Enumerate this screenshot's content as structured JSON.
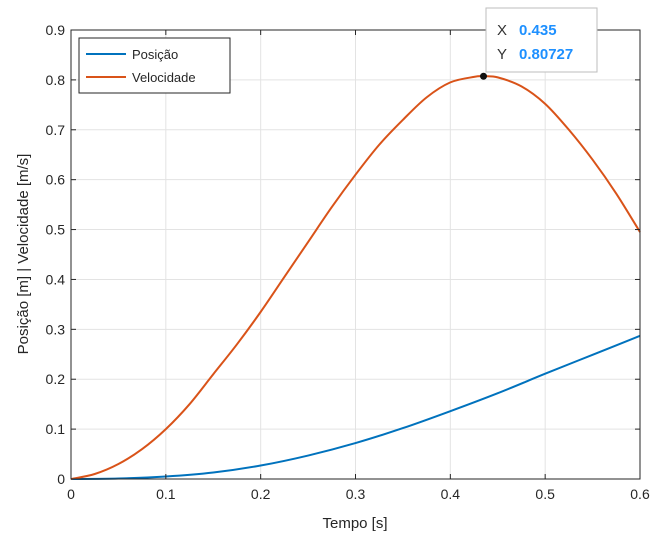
{
  "chart_data": {
    "type": "line",
    "xlabel": "Tempo [s]",
    "ylabel": "Posição [m] | Velocidade [m/s]",
    "xlim": [
      0,
      0.6
    ],
    "ylim": [
      0,
      0.9
    ],
    "xticks": [
      0,
      0.1,
      0.2,
      0.3,
      0.4,
      0.5,
      0.6
    ],
    "yticks": [
      0,
      0.1,
      0.2,
      0.3,
      0.4,
      0.5,
      0.6,
      0.7,
      0.8,
      0.9
    ],
    "xtick_labels": [
      "0",
      "0.1",
      "0.2",
      "0.3",
      "0.4",
      "0.5",
      "0.6"
    ],
    "ytick_labels": [
      "0",
      "0.1",
      "0.2",
      "0.3",
      "0.4",
      "0.5",
      "0.6",
      "0.7",
      "0.8",
      "0.9"
    ],
    "grid": true,
    "legend_position": "top-left",
    "series": [
      {
        "name": "Posição",
        "color": "#0072BD",
        "x": [
          0,
          0.05,
          0.1,
          0.15,
          0.2,
          0.25,
          0.3,
          0.35,
          0.4,
          0.45,
          0.5,
          0.55,
          0.6
        ],
        "y": [
          0,
          0.001,
          0.005,
          0.013,
          0.027,
          0.047,
          0.072,
          0.102,
          0.136,
          0.172,
          0.211,
          0.249,
          0.287
        ]
      },
      {
        "name": "Velocidade",
        "color": "#D95319",
        "x": [
          0,
          0.025,
          0.05,
          0.075,
          0.1,
          0.125,
          0.15,
          0.175,
          0.2,
          0.225,
          0.25,
          0.275,
          0.3,
          0.325,
          0.35,
          0.375,
          0.4,
          0.425,
          0.435,
          0.45,
          0.475,
          0.5,
          0.525,
          0.55,
          0.575,
          0.6
        ],
        "y": [
          0,
          0.01,
          0.03,
          0.06,
          0.1,
          0.15,
          0.21,
          0.27,
          0.335,
          0.405,
          0.475,
          0.545,
          0.61,
          0.67,
          0.72,
          0.765,
          0.795,
          0.806,
          0.80727,
          0.805,
          0.787,
          0.752,
          0.7,
          0.64,
          0.572,
          0.495
        ]
      }
    ],
    "datatip": {
      "series": "Velocidade",
      "x": 0.435,
      "y": 0.80727,
      "x_label": "X",
      "y_label": "Y",
      "x_text": "0.435",
      "y_text": "0.80727"
    }
  }
}
